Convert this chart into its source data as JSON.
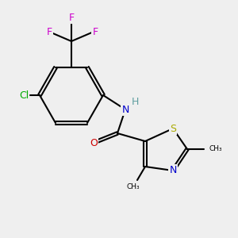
{
  "background_color": "#efefef",
  "bond_color": "#000000",
  "bond_lw": 1.5,
  "atom_colors": {
    "C": "#000000",
    "N": "#0000cc",
    "O": "#cc0000",
    "S": "#aaaa00",
    "F": "#cc00cc",
    "Cl": "#00aa00",
    "H": "#5f9ea0"
  },
  "font_size": 9,
  "font_size_small": 8
}
